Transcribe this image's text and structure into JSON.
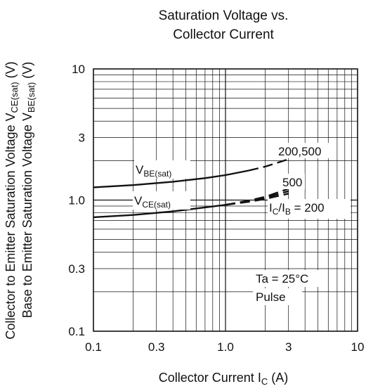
{
  "chart_data": {
    "type": "line",
    "title_lines": [
      "Saturation Voltage vs.",
      "Collector Current"
    ],
    "xlabel": {
      "main": "Collector Current  I",
      "sub": "C",
      "unit": "  (A)"
    },
    "ylabel_line1": {
      "main": "Collector to Emitter Saturation Voltage  V",
      "sub": "CE(sat)",
      "unit": "  (V)"
    },
    "ylabel_line2": {
      "main": "Base to Emitter Saturation Voltage  V",
      "sub": "BE(sat)",
      "unit": "  (V)"
    },
    "x_scale": "log",
    "y_scale": "log",
    "xlim": [
      0.1,
      10
    ],
    "ylim": [
      0.1,
      10
    ],
    "x_ticks": [
      {
        "value": 0.1,
        "label": "0.1"
      },
      {
        "value": 0.3,
        "label": "0.3"
      },
      {
        "value": 1,
        "label": "1.0"
      },
      {
        "value": 3,
        "label": "3"
      },
      {
        "value": 10,
        "label": "10"
      }
    ],
    "y_ticks": [
      {
        "value": 0.1,
        "label": "0.1"
      },
      {
        "value": 0.3,
        "label": "0.3"
      },
      {
        "value": 1,
        "label": "1.0"
      },
      {
        "value": 3,
        "label": "3"
      },
      {
        "value": 10,
        "label": "10"
      }
    ],
    "grid": true,
    "series": [
      {
        "label": {
          "main": "V",
          "sub": "BE(sat)"
        },
        "solid": {
          "x": [
            0.1,
            0.2,
            0.4,
            0.7,
            1.0,
            1.5
          ],
          "y": [
            1.25,
            1.3,
            1.38,
            1.47,
            1.55,
            1.68
          ]
        },
        "dashed": {
          "x": [
            1.5,
            2.0,
            3.0
          ],
          "y": [
            1.68,
            1.8,
            2.05
          ]
        }
      },
      {
        "label": {
          "main": "V",
          "sub": "CE(sat)"
        },
        "solid": {
          "x": [
            0.1,
            0.2,
            0.4,
            0.7,
            1.0
          ],
          "y": [
            0.74,
            0.77,
            0.82,
            0.88,
            0.92
          ]
        },
        "dashed_branches": [
          {
            "x": [
              1.0,
              1.5,
              2.0,
              3.0
            ],
            "y": [
              0.92,
              0.99,
              1.06,
              1.22
            ]
          },
          {
            "x": [
              1.0,
              1.5,
              2.0,
              3.0
            ],
            "y": [
              0.92,
              0.98,
              1.04,
              1.17
            ]
          },
          {
            "x": [
              1.0,
              1.5,
              2.0,
              3.0
            ],
            "y": [
              0.92,
              0.97,
              1.02,
              1.12
            ]
          }
        ]
      }
    ],
    "annotations": [
      {
        "text": "200,500"
      },
      {
        "text": "500"
      },
      {
        "text": "I",
        "sub": "C",
        "rest": "/I",
        "sub2": "B",
        "tail": " = 200"
      },
      {
        "text": "Ta = 25°C"
      },
      {
        "text": "Pulse"
      }
    ]
  }
}
